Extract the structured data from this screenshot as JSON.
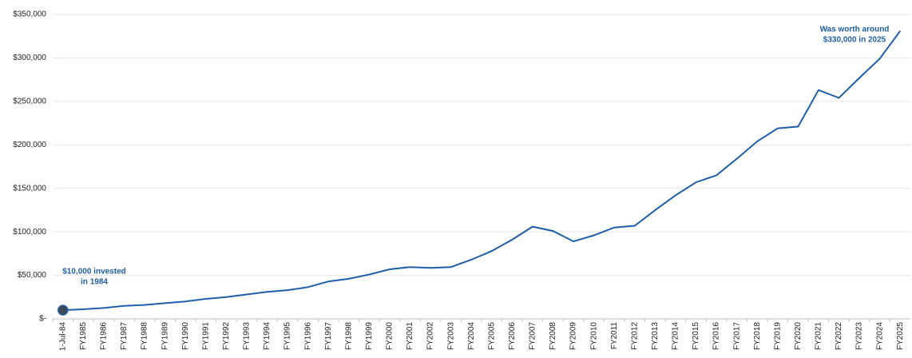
{
  "chart_data": {
    "type": "line",
    "categories": [
      "1-Jul-84",
      "FY1985",
      "FY1986",
      "FY1987",
      "FY1988",
      "FY1989",
      "FY1990",
      "FY1991",
      "FY1992",
      "FY1993",
      "FY1994",
      "FY1995",
      "FY1996",
      "FY1997",
      "FY1998",
      "FY1999",
      "FY2000",
      "FY2001",
      "FY2002",
      "FY2003",
      "FY2004",
      "FY2005",
      "FY2006",
      "FY2007",
      "FY2008",
      "FY2009",
      "FY2010",
      "FY2011",
      "FY2012",
      "FY2013",
      "FY2014",
      "FY2015",
      "FY2016",
      "FY2017",
      "FY2018",
      "FY2019",
      "FY2020",
      "FY2021",
      "FY2022",
      "FY2023",
      "FY2024",
      "FY2025"
    ],
    "values": [
      10000,
      11000,
      12500,
      15000,
      16000,
      18000,
      20000,
      23000,
      25000,
      28000,
      31000,
      33000,
      36500,
      43000,
      46000,
      51000,
      57000,
      59500,
      58500,
      59500,
      68000,
      78000,
      91000,
      106000,
      101000,
      89000,
      96000,
      105000,
      107000,
      125000,
      142000,
      157000,
      165000,
      184000,
      204000,
      219000,
      221000,
      263000,
      254000,
      277000,
      299000,
      331000
    ],
    "color": "#1f5ea8",
    "ylim": [
      0,
      350000
    ],
    "yticks": [
      {
        "value": 0,
        "label": "$-"
      },
      {
        "value": 50000,
        "label": "$50,000"
      },
      {
        "value": 100000,
        "label": "$100,000"
      },
      {
        "value": 150000,
        "label": "$150,000"
      },
      {
        "value": 200000,
        "label": "$200,000"
      },
      {
        "value": 250000,
        "label": "$250,000"
      },
      {
        "value": 300000,
        "label": "$300,000"
      },
      {
        "value": 350000,
        "label": "$350,000"
      }
    ],
    "grid": true,
    "annotations": [
      {
        "lines": [
          "$10,000 invested",
          "in 1984"
        ]
      },
      {
        "lines": [
          "Was worth around",
          "$330,000 in 2025"
        ]
      }
    ]
  }
}
